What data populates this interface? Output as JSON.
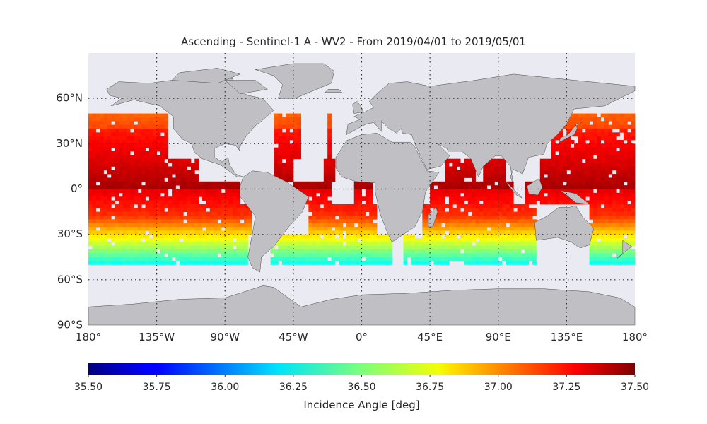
{
  "title": "Ascending - Sentinel-1 A - WV2 - From 2019/04/01 to 2019/05/01",
  "colors": {
    "ocean_background": "#eaeaf2",
    "land": "#c0c0c4",
    "coastline": "#4a4a4a",
    "grid": "#333333"
  },
  "map": {
    "projection": "equirectangular",
    "lon_range": [
      -180,
      180
    ],
    "lat_range": [
      -90,
      90
    ],
    "lat_labels": [
      {
        "lat": 60,
        "label": "60°N"
      },
      {
        "lat": 30,
        "label": "30°N"
      },
      {
        "lat": 0,
        "label": "0°"
      },
      {
        "lat": -30,
        "label": "30°S"
      },
      {
        "lat": -60,
        "label": "60°S"
      },
      {
        "lat": -90,
        "label": "90°S"
      }
    ],
    "lon_labels": [
      {
        "lon": -180,
        "label": "180°"
      },
      {
        "lon": -135,
        "label": "135°W"
      },
      {
        "lon": -90,
        "label": "90°W"
      },
      {
        "lon": -45,
        "label": "45°W"
      },
      {
        "lon": 0,
        "label": "0°"
      },
      {
        "lon": 45,
        "label": "45°E"
      },
      {
        "lon": 90,
        "label": "90°E"
      },
      {
        "lon": 135,
        "label": "135°E"
      },
      {
        "lon": 180,
        "label": "180°"
      }
    ]
  },
  "chart_data": {
    "type": "heatmap",
    "title": "Ascending - Sentinel-1 A - WV2 - From 2019/04/01 to 2019/05/01",
    "colormap": "jet",
    "value_range": [
      35.5,
      37.5
    ],
    "data_lat_range": [
      -50,
      50
    ],
    "colorbar": {
      "label": "Incidence Angle [deg]",
      "ticks": [
        "35.50",
        "35.75",
        "36.00",
        "36.25",
        "36.50",
        "36.75",
        "37.00",
        "37.25",
        "37.50"
      ]
    }
  }
}
